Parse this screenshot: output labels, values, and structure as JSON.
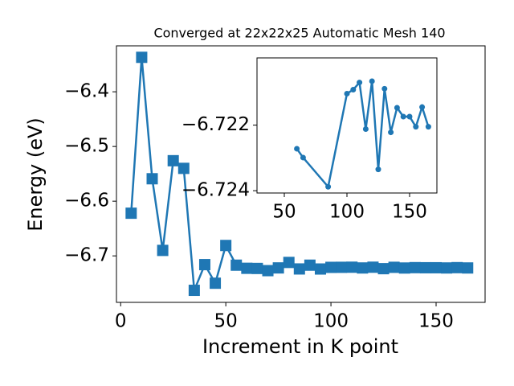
{
  "chart_data": [
    {
      "type": "line",
      "title": "Converged at 22x22x25 Automatic Mesh 140",
      "x_label": "Increment in K point",
      "y_label": "Energy (eV)",
      "x": [
        5,
        10,
        15,
        20,
        25,
        30,
        35,
        40,
        45,
        50,
        55,
        60,
        65,
        70,
        75,
        80,
        85,
        90,
        95,
        100,
        105,
        110,
        115,
        120,
        125,
        130,
        135,
        140,
        145,
        150,
        155,
        160,
        165
      ],
      "series": [
        {
          "name": "Energy",
          "color": "#1f77b4",
          "marker": "square",
          "values": [
            -6.622,
            -6.337,
            -6.559,
            -6.69,
            -6.526,
            -6.54,
            -6.763,
            -6.716,
            -6.75,
            -6.681,
            -6.717,
            -6.7227,
            -6.723,
            -6.727,
            -6.722,
            -6.712,
            -6.7239,
            -6.717,
            -6.724,
            -6.721,
            -6.7209,
            -6.7207,
            -6.7221,
            -6.7207,
            -6.7234,
            -6.7209,
            -6.7222,
            -6.7215,
            -6.7217,
            -6.7217,
            -6.7221,
            -6.7215,
            -6.7221
          ]
        }
      ],
      "xlim": [
        -2,
        173.3
      ],
      "ylim": [
        -6.785,
        -6.316
      ],
      "xticks": [
        0,
        50,
        100,
        150
      ],
      "yticks": [
        {
          "value": -6.4,
          "label": "−6.4"
        },
        {
          "value": -6.5,
          "label": "−6.5"
        },
        {
          "value": -6.6,
          "label": "−6.6"
        },
        {
          "value": -6.7,
          "label": "−6.7"
        }
      ]
    },
    {
      "type": "line",
      "x": [
        60,
        65,
        85,
        100,
        105,
        110,
        115,
        120,
        125,
        130,
        135,
        140,
        145,
        150,
        155,
        160,
        165
      ],
      "series": [
        {
          "name": "Energy",
          "color": "#1f77b4",
          "marker": "circle",
          "values": [
            -6.72272,
            -6.72299,
            -6.72388,
            -6.72104,
            -6.72092,
            -6.7207,
            -6.72212,
            -6.72066,
            -6.72335,
            -6.72089,
            -6.72222,
            -6.72147,
            -6.72174,
            -6.72174,
            -6.72205,
            -6.72145,
            -6.72205
          ]
        }
      ],
      "xlim": [
        28.2,
        171.8
      ],
      "ylim": [
        -6.72407,
        -6.71995
      ],
      "xticks": [
        50,
        100,
        150
      ],
      "yticks": [
        {
          "value": -6.724,
          "label": "−6.724"
        },
        {
          "value": -6.722,
          "label": "−6.722"
        }
      ]
    }
  ]
}
